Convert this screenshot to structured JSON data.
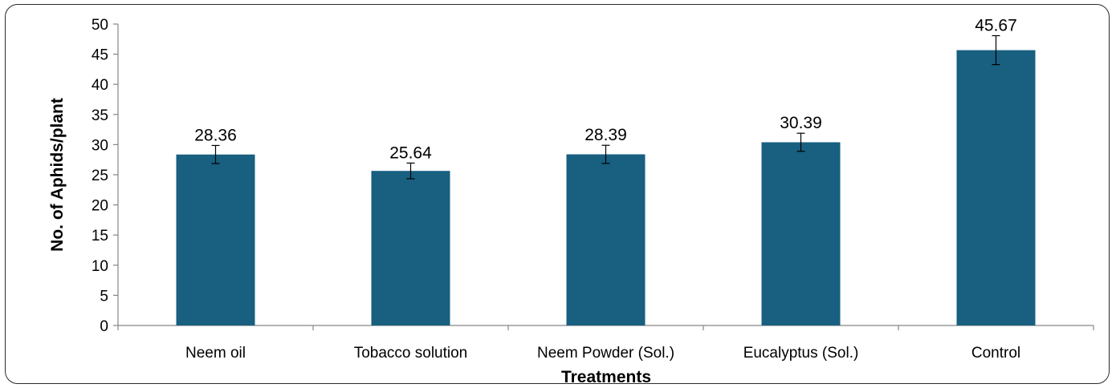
{
  "chart_data": {
    "type": "bar",
    "categories": [
      "Neem oil",
      "Tobacco solution",
      "Neem Powder (Sol.)",
      "Eucalyptus (Sol.)",
      "Control"
    ],
    "values": [
      28.36,
      25.64,
      28.39,
      30.39,
      45.67
    ],
    "data_labels": [
      "28.36",
      "25.64",
      "28.39",
      "30.39",
      "45.67"
    ],
    "error": [
      1.5,
      1.3,
      1.5,
      1.5,
      2.4
    ],
    "title": "",
    "xlabel": "Treatments",
    "ylabel": "No. of Aphids/plant",
    "ylim": [
      0,
      50
    ],
    "yticks": [
      0,
      5,
      10,
      15,
      20,
      25,
      30,
      35,
      40,
      45,
      50
    ],
    "grid": false,
    "legend": "none",
    "bar_color": "#185f80"
  }
}
